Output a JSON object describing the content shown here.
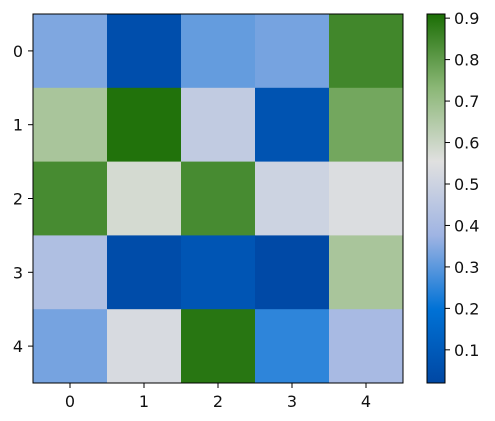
{
  "chart_data": {
    "type": "heatmap",
    "title": "",
    "xlabel": "",
    "ylabel": "",
    "x_categories": [
      "0",
      "1",
      "2",
      "3",
      "4"
    ],
    "y_categories": [
      "0",
      "1",
      "2",
      "3",
      "4"
    ],
    "values": [
      [
        0.34,
        0.05,
        0.31,
        0.33,
        0.85
      ],
      [
        0.67,
        0.9,
        0.47,
        0.07,
        0.77
      ],
      [
        0.84,
        0.58,
        0.84,
        0.5,
        0.54
      ],
      [
        0.42,
        0.04,
        0.08,
        0.03,
        0.67
      ],
      [
        0.33,
        0.53,
        0.89,
        0.25,
        0.4
      ]
    ],
    "colorbar": {
      "range": [
        0.02,
        0.91
      ],
      "ticks": [
        "0.1",
        "0.2",
        "0.3",
        "0.4",
        "0.5",
        "0.6",
        "0.7",
        "0.8",
        "0.9"
      ],
      "colors": [
        "#0047a3",
        "#0072d6",
        "#9fb4e3",
        "#e0e0e0",
        "#8bb776",
        "#1b6e05"
      ]
    }
  }
}
